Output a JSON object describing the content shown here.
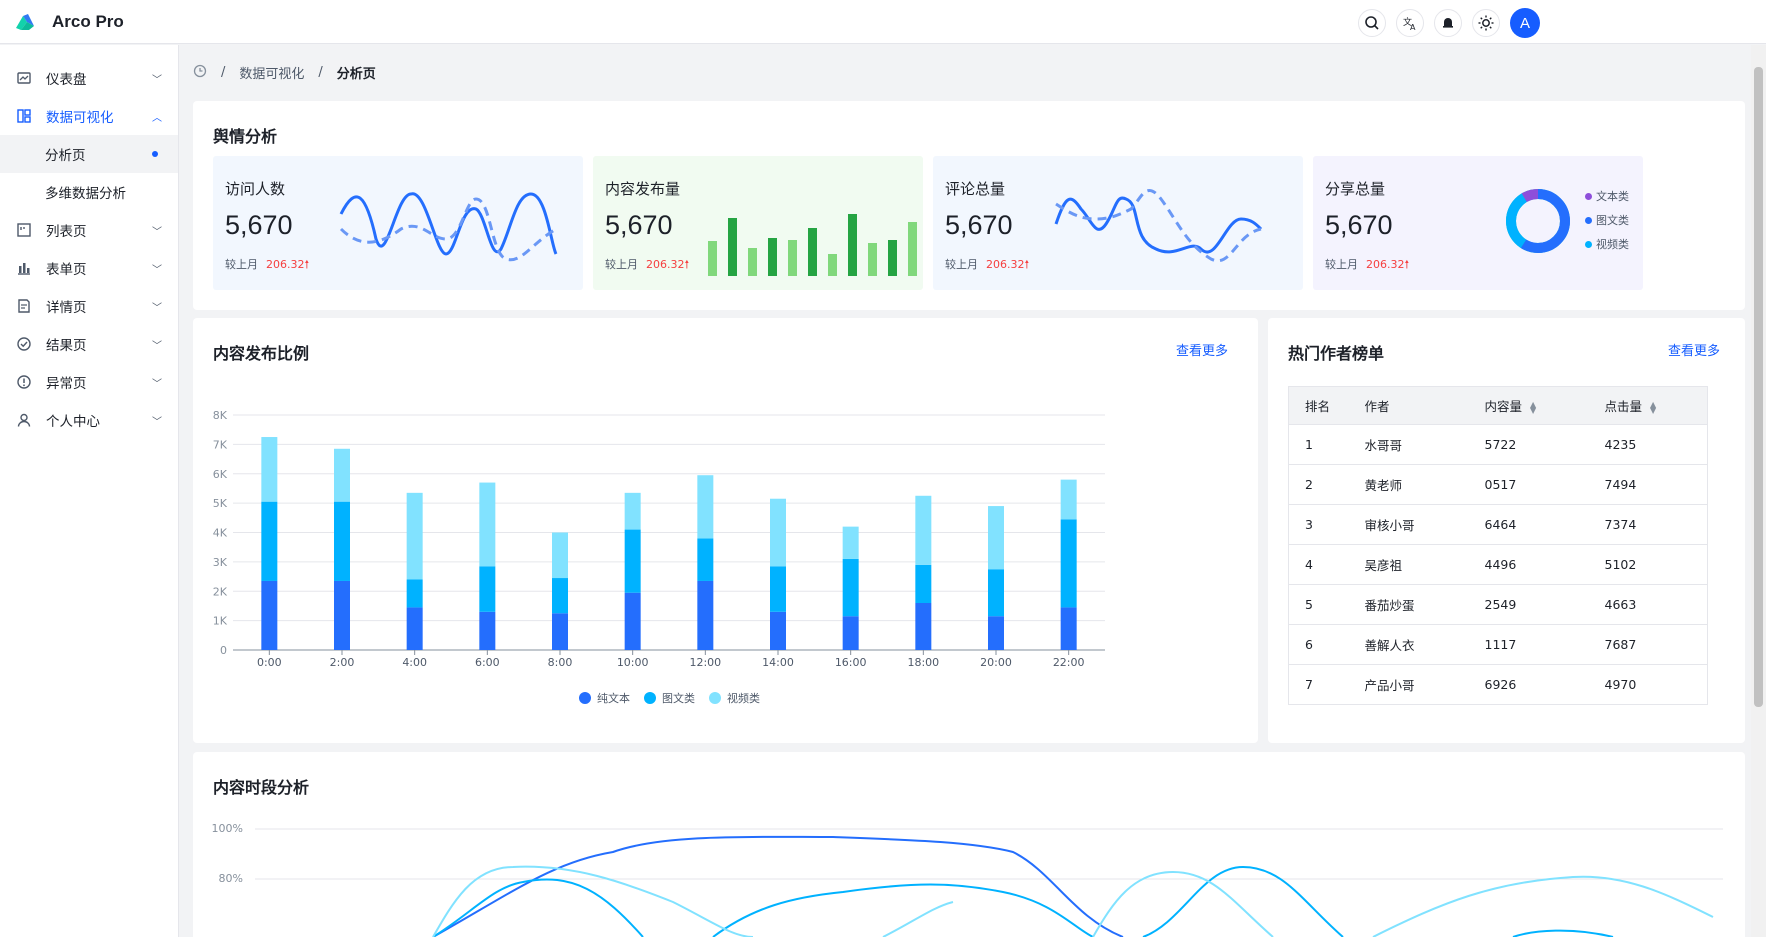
{
  "header": {
    "brand": "Arco Pro",
    "avatar_letter": "A"
  },
  "sidebar": {
    "items": [
      {
        "label": "仪表盘",
        "icon": "dashboard-icon"
      },
      {
        "label": "数据可视化",
        "icon": "visualization-icon",
        "children": [
          {
            "label": "分析页",
            "selected": true
          },
          {
            "label": "多维数据分析"
          }
        ]
      },
      {
        "label": "列表页",
        "icon": "list-icon"
      },
      {
        "label": "表单页",
        "icon": "form-icon"
      },
      {
        "label": "详情页",
        "icon": "detail-icon"
      },
      {
        "label": "结果页",
        "icon": "result-icon"
      },
      {
        "label": "异常页",
        "icon": "exception-icon"
      },
      {
        "label": "个人中心",
        "icon": "user-icon"
      }
    ]
  },
  "breadcrumb": {
    "items": [
      "数据可视化",
      "分析页"
    ]
  },
  "sentiment": {
    "title": "舆情分析",
    "cards": [
      {
        "label": "访问人数",
        "value": "5,670",
        "compare_label": "较上月",
        "compare_value": "206.32"
      },
      {
        "label": "内容发布量",
        "value": "5,670",
        "compare_label": "较上月",
        "compare_value": "206.32"
      },
      {
        "label": "评论总量",
        "value": "5,670",
        "compare_label": "较上月",
        "compare_value": "206.32"
      },
      {
        "label": "分享总量",
        "value": "5,670",
        "compare_label": "较上月",
        "compare_value": "206.32"
      }
    ],
    "share_legend": [
      "文本类",
      "图文类",
      "视频类"
    ]
  },
  "publish_ratio": {
    "title": "内容发布比例",
    "more": "查看更多",
    "chart_data": {
      "type": "bar",
      "stacked": true,
      "categories": [
        "0:00",
        "2:00",
        "4:00",
        "6:00",
        "8:00",
        "10:00",
        "12:00",
        "14:00",
        "16:00",
        "18:00",
        "20:00",
        "22:00"
      ],
      "yticks": [
        "0",
        "1K",
        "2K",
        "3K",
        "4K",
        "5K",
        "6K",
        "7K",
        "8K"
      ],
      "ylim": [
        0,
        8000
      ],
      "series": [
        {
          "name": "纯文本",
          "color": "#246efd",
          "values": [
            2350,
            2350,
            1450,
            1300,
            1250,
            1950,
            2350,
            1300,
            1150,
            1600,
            1150,
            1450
          ]
        },
        {
          "name": "图文类",
          "color": "#00b2ff",
          "values": [
            2700,
            2700,
            950,
            1550,
            1200,
            2150,
            1450,
            1550,
            1950,
            1300,
            1600,
            3000
          ]
        },
        {
          "name": "视频类",
          "color": "#81e2ff",
          "values": [
            2200,
            1800,
            2950,
            2850,
            1550,
            1250,
            2150,
            2300,
            1100,
            2350,
            2150,
            1350
          ]
        }
      ],
      "legend": "bottom"
    }
  },
  "hot_authors": {
    "title": "热门作者榜单",
    "more": "查看更多",
    "columns": [
      "排名",
      "作者",
      "内容量",
      "点击量"
    ],
    "rows": [
      [
        "1",
        "水哥哥",
        "5722",
        "4235"
      ],
      [
        "2",
        "黄老师",
        "0517",
        "7494"
      ],
      [
        "3",
        "审核小哥",
        "6464",
        "7374"
      ],
      [
        "4",
        "吴彦祖",
        "4496",
        "5102"
      ],
      [
        "5",
        "番茄炒蛋",
        "2549",
        "4663"
      ],
      [
        "6",
        "善解人衣",
        "1117",
        "7687"
      ],
      [
        "7",
        "产品小哥",
        "6926",
        "4970"
      ]
    ]
  },
  "time_analysis": {
    "title": "内容时段分析",
    "yticks": [
      "100%",
      "80%"
    ]
  }
}
